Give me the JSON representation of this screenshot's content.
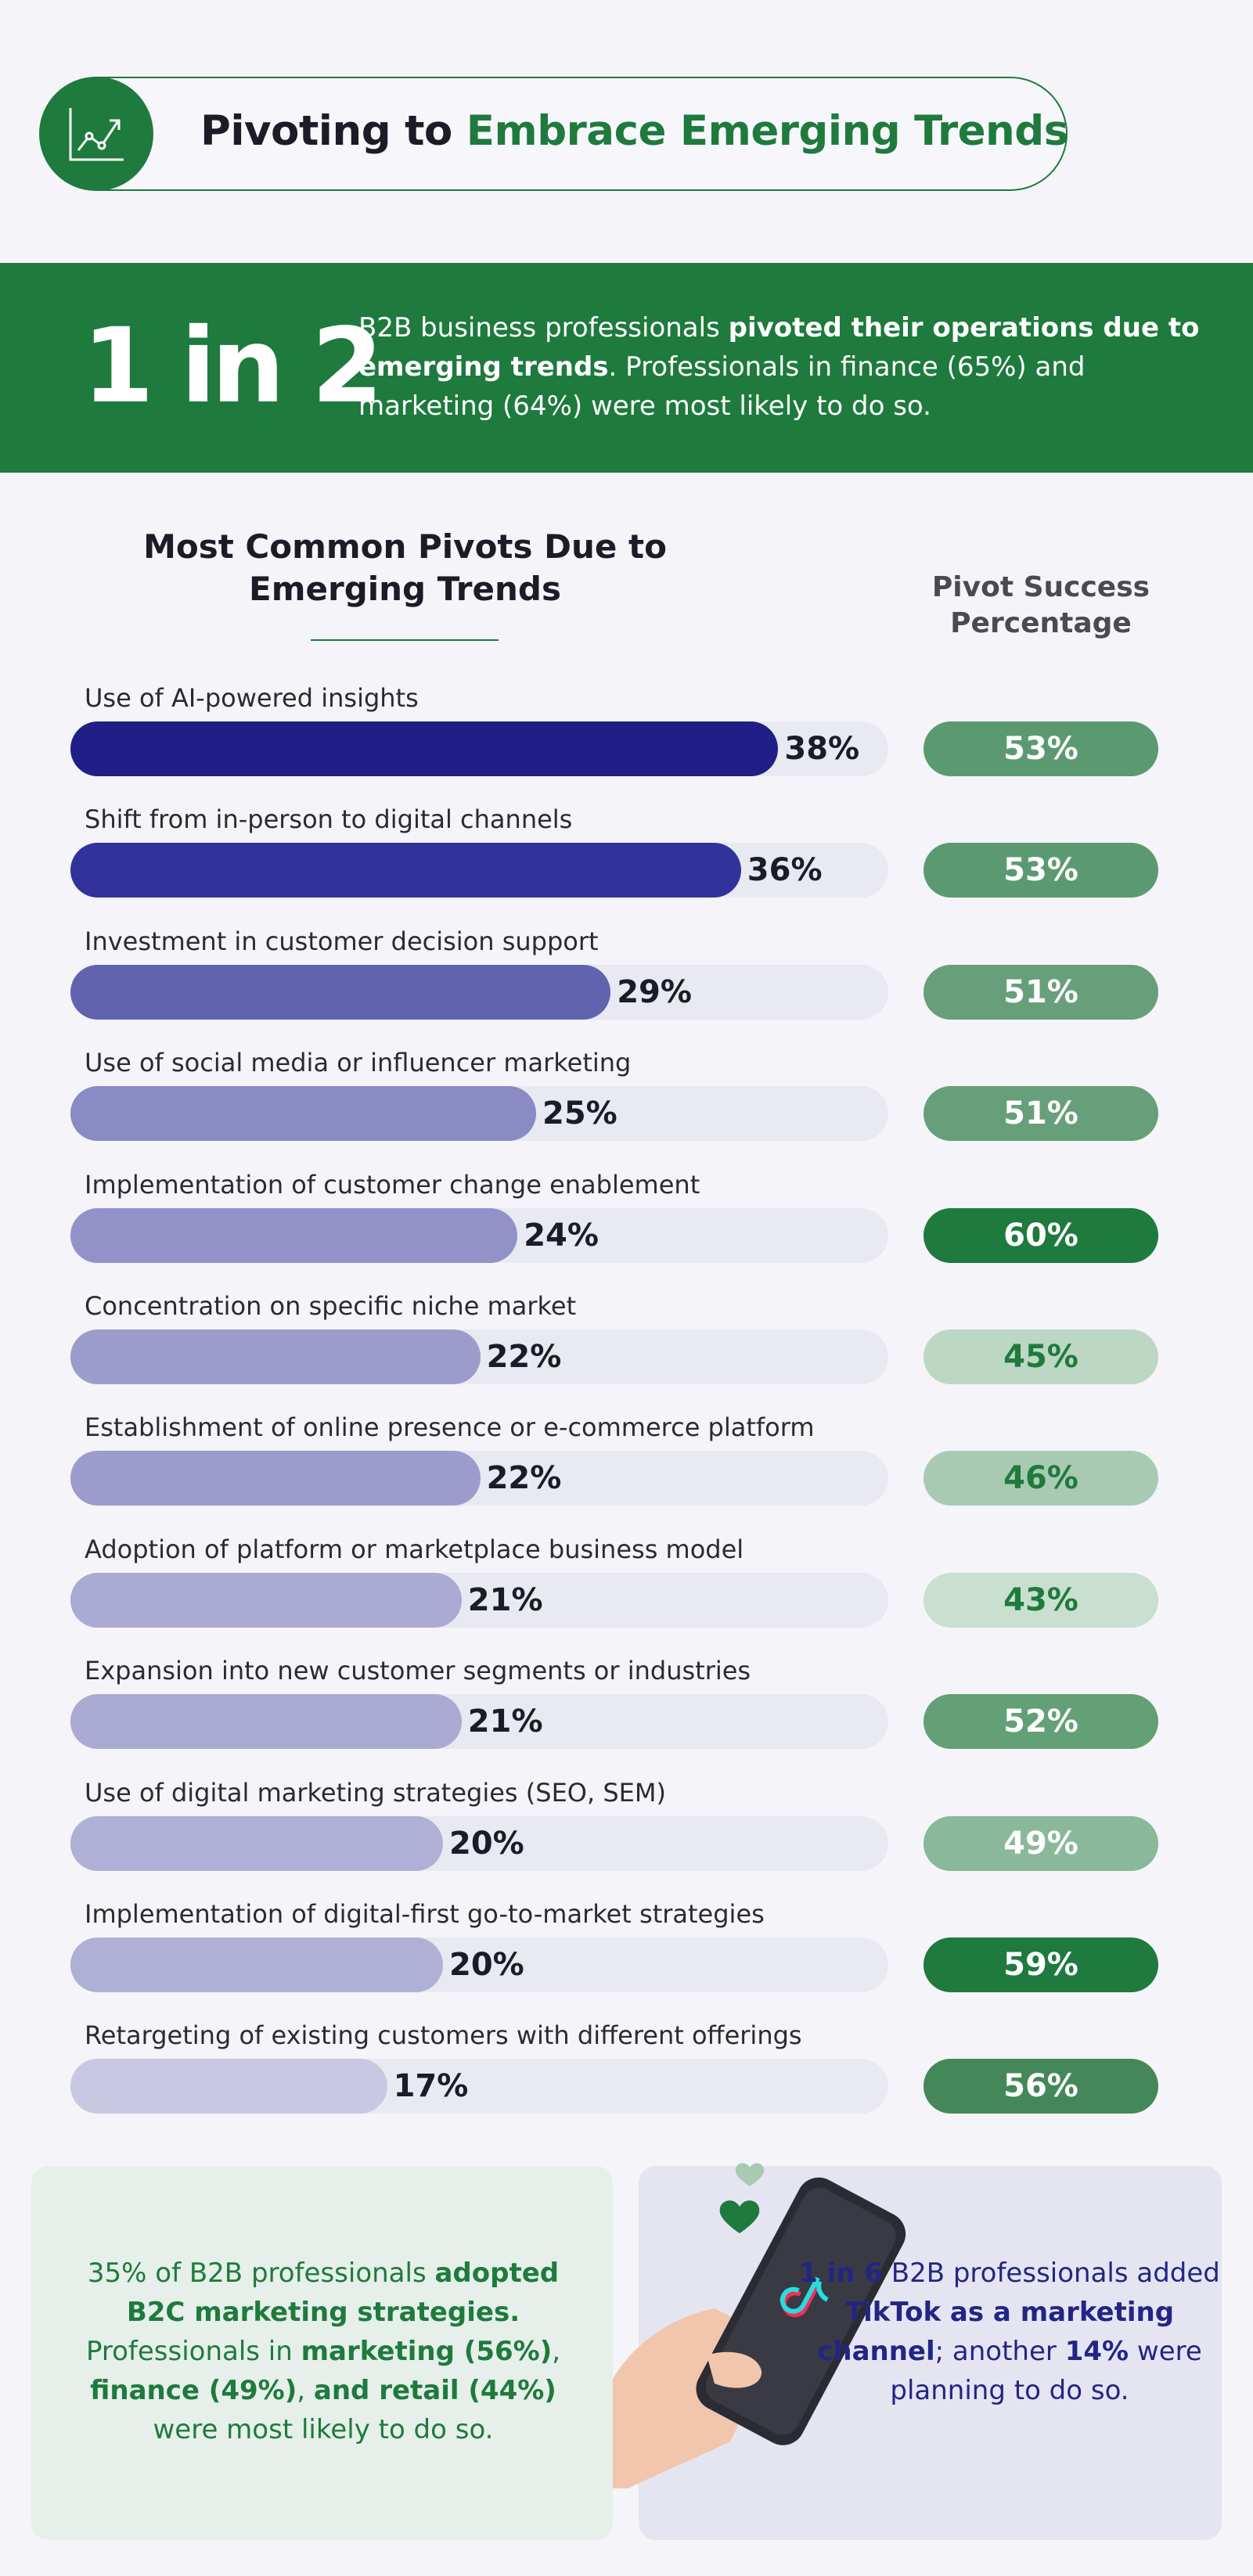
{
  "header": {
    "title_part1": "Pivoting to ",
    "title_part2": "Embrace Emerging Trends",
    "icon": "chart-trend-icon"
  },
  "banner": {
    "stat": "1 in 2",
    "text_pre": "B2B business professionals ",
    "text_bold": "pivoted their operations due to emerging trends",
    "text_post": ". Professionals in finance (65%) and marketing (64%) were most likely to do so."
  },
  "chart_titles": {
    "main": "Most Common Pivots Due to Emerging Trends",
    "success": "Pivot Success Percentage"
  },
  "chart_data": {
    "type": "bar",
    "orientation": "horizontal",
    "title": "Most Common Pivots Due to Emerging Trends",
    "xlim": [
      0,
      100
    ],
    "categories": [
      "Use of AI-powered insights",
      "Shift from in-person to digital channels",
      "Investment in customer decision support",
      "Use of social media or influencer marketing",
      "Implementation of customer change enablement",
      "Concentration on specific niche market",
      "Establishment of online presence or e-commerce platform",
      "Adoption of platform or marketplace business model",
      "Expansion into new customer segments or industries",
      "Use of digital marketing strategies (SEO, SEM)",
      "Implementation of digital-first go-to-market strategies",
      "Retargeting of existing customers with different offerings"
    ],
    "series": [
      {
        "name": "Most Common Pivots Due to Emerging Trends",
        "values": [
          38,
          36,
          29,
          25,
          24,
          22,
          22,
          21,
          21,
          20,
          20,
          17
        ],
        "labels": [
          "38%",
          "36%",
          "29%",
          "25%",
          "24%",
          "22%",
          "22%",
          "21%",
          "21%",
          "20%",
          "20%",
          "17%"
        ],
        "colors": [
          "#1f1f87",
          "#32339a",
          "#6263ae",
          "#8a8ac4",
          "#9292c8",
          "#9c9ccc",
          "#9c9ccc",
          "#aaaad3",
          "#aaaad3",
          "#b0b0d6",
          "#b0b0d6",
          "#c8c8e2"
        ]
      },
      {
        "name": "Pivot Success Percentage",
        "values": [
          53,
          53,
          51,
          51,
          60,
          45,
          46,
          43,
          52,
          49,
          59,
          56
        ],
        "labels": [
          "53%",
          "53%",
          "51%",
          "51%",
          "60%",
          "45%",
          "46%",
          "43%",
          "52%",
          "49%",
          "59%",
          "56%"
        ],
        "colors": [
          "#5b9a71",
          "#5b9a71",
          "#679f7a",
          "#679f7a",
          "#1e7a3d",
          "#bcd7c4",
          "#a8cab3",
          "#c9dfd0",
          "#63a075",
          "#8ab89a",
          "#1e7a3d",
          "#44885a"
        ],
        "text_colors": [
          "#ffffff",
          "#ffffff",
          "#ffffff",
          "#ffffff",
          "#ffffff",
          "#1e7a3d",
          "#1e7a3d",
          "#1e7a3d",
          "#ffffff",
          "#ffffff",
          "#ffffff",
          "#ffffff"
        ]
      }
    ]
  },
  "cards": {
    "left": {
      "t1": "35% of B2B professionals ",
      "b1": "adopted B2C marketing strategies.",
      "t2": " Professionals in ",
      "b2": "marketing (56%)",
      "t3": ", ",
      "b3": "finance (49%)",
      "t4": ", ",
      "b4": "and retail (44%)",
      "t5": " were most likely to do so."
    },
    "right": {
      "b1": "1 in 6",
      "t1": " B2B professionals added ",
      "b2": "TikTok as a marketing channel",
      "t2": "; another ",
      "b3": "14%",
      "t3": " were planning to do so."
    },
    "illustration_icons": [
      "phone-in-hand-icon",
      "tiktok-logo-icon",
      "heart-icon"
    ]
  },
  "colors": {
    "brand_green": "#1e7a3d",
    "brand_navy": "#232585",
    "background": "#f4f4f9"
  }
}
